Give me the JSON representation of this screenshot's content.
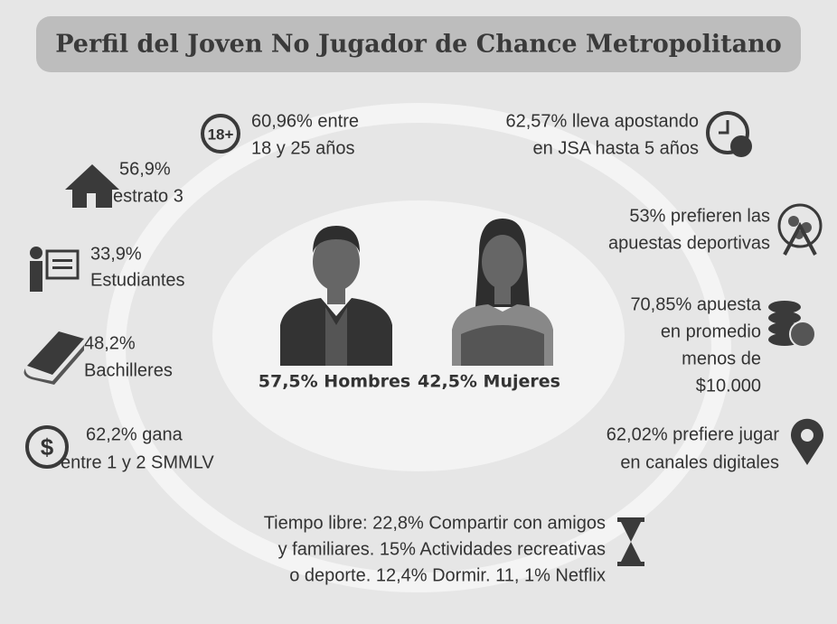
{
  "header": {
    "title": "Perfil del Joven No Jugador de Chance Metropolitano"
  },
  "center": {
    "men": "57,5% Hombres",
    "women": "42,5% Mujeres"
  },
  "items": {
    "age": {
      "icon": "18+",
      "lines": [
        "60,96% entre",
        "18 y 25 años"
      ]
    },
    "estrato": {
      "lines": [
        "56,9%",
        "estrato 3"
      ]
    },
    "students": {
      "lines": [
        "33,9%",
        "Estudiantes"
      ]
    },
    "school": {
      "lines": [
        "48,2%",
        "Bachilleres"
      ]
    },
    "income": {
      "icon": "$",
      "lines": [
        "62,2% gana",
        "entre 1 y 2 SMMLV"
      ]
    },
    "betting_years": {
      "lines": [
        "62,57% lleva apostando",
        "en JSA hasta 5 años"
      ]
    },
    "sports": {
      "lines": [
        "53% prefieren las",
        "apuestas deportivas"
      ]
    },
    "average": {
      "lines": [
        "70,85% apuesta",
        "en promedio",
        "menos de",
        "$10.000"
      ]
    },
    "digital": {
      "lines": [
        "62,02% prefiere jugar",
        "en canales digitales"
      ]
    },
    "free_time": {
      "lines": [
        "Tiempo libre:  22,8%  Compartir con amigos",
        "y familiares. 15% Actividades recreativas",
        "o deporte. 12,4% Dormir.  11, 1% Netflix"
      ]
    }
  }
}
